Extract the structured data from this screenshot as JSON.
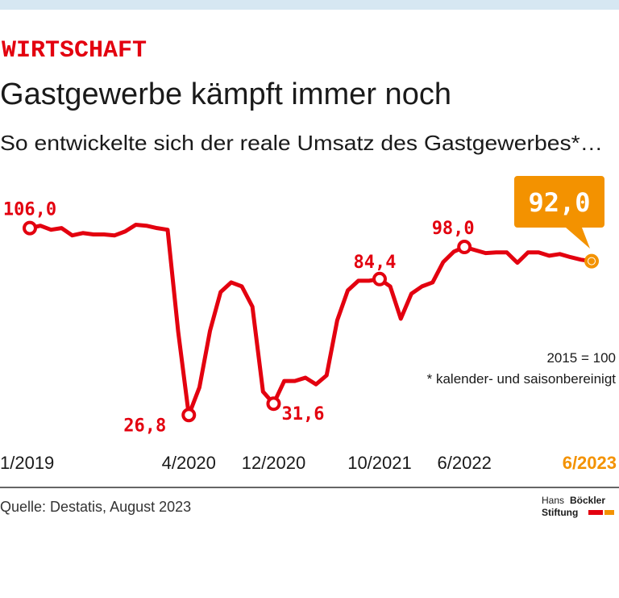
{
  "chart_data": {
    "type": "line",
    "kicker": "WIRTSCHAFT",
    "title": "Gastgewerbe kämpft immer noch",
    "subtitle": "So entwickelte sich der reale Umsatz des Gastgewerbes*…",
    "categories": [
      "1/2019",
      null,
      null,
      null,
      null,
      null,
      null,
      null,
      null,
      null,
      null,
      null,
      null,
      null,
      null,
      "4/2020",
      null,
      null,
      null,
      null,
      null,
      null,
      null,
      "12/2020",
      null,
      null,
      null,
      null,
      null,
      null,
      null,
      null,
      null,
      "10/2021",
      null,
      null,
      null,
      null,
      null,
      null,
      null,
      "6/2022",
      null,
      null,
      null,
      null,
      null,
      null,
      null,
      null,
      null,
      null,
      null,
      "6/2023"
    ],
    "series": [
      {
        "name": "Umsatz",
        "color": "#e3000f",
        "highlight_color": "#f39200",
        "values": [
          106.0,
          107.0,
          105.3,
          106.0,
          102.9,
          103.9,
          103.3,
          103.3,
          102.9,
          104.6,
          107.4,
          107.0,
          106.0,
          105.3,
          62.0,
          26.8,
          38.5,
          62.5,
          78.9,
          83.0,
          81.3,
          72.7,
          36.7,
          31.6,
          41.2,
          41.2,
          42.6,
          39.8,
          43.6,
          66.9,
          79.6,
          83.7,
          83.7,
          84.4,
          81.3,
          67.6,
          78.2,
          81.3,
          83.0,
          91.6,
          96.0,
          98.0,
          96.7,
          95.4,
          95.7,
          95.7,
          91.3,
          95.7,
          95.7,
          94.3,
          95.0,
          93.7,
          92.6,
          92.0
        ],
        "value_labels": [
          "106,0",
          null,
          null,
          null,
          null,
          null,
          null,
          null,
          null,
          null,
          null,
          null,
          null,
          null,
          null,
          "26,8",
          null,
          null,
          null,
          null,
          null,
          null,
          null,
          "31,6",
          null,
          null,
          null,
          null,
          null,
          null,
          null,
          null,
          null,
          "84,4",
          null,
          null,
          null,
          null,
          null,
          null,
          null,
          "98,0",
          null,
          null,
          null,
          null,
          null,
          null,
          null,
          null,
          null,
          null,
          null,
          "92,0"
        ]
      }
    ],
    "ylim": [
      18,
      124
    ],
    "notes": [
      "2015 = 100",
      "* kalender- und saisonbereinigt"
    ],
    "source": "Quelle: Destatis, August 2023",
    "logo": [
      "Hans",
      "Böckler",
      "Stiftung"
    ]
  }
}
